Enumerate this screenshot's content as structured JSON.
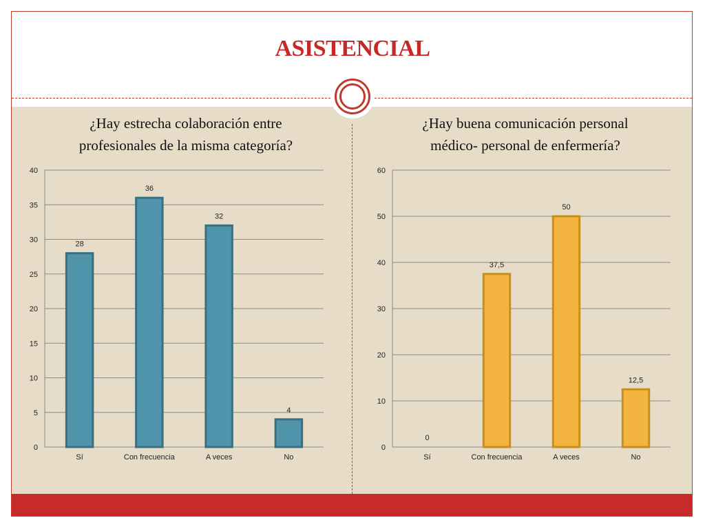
{
  "page": {
    "title": "ASISTENCIAL"
  },
  "colors": {
    "accent": "#c62828",
    "panel_background": "#e6dcc8",
    "series_left": "#4f94aa",
    "series_right": "#f3b53f"
  },
  "chart_data": [
    {
      "type": "bar",
      "title_lines": [
        "¿Hay estrecha colaboración entre",
        "profesionales de la misma categoría?"
      ],
      "categories": [
        "Sí",
        "Con frecuencia",
        "A veces",
        "No"
      ],
      "values": [
        28,
        36,
        32,
        4
      ],
      "labels": [
        "28",
        "36",
        "32",
        "4"
      ],
      "yticks": [
        0,
        5,
        10,
        15,
        20,
        25,
        30,
        35,
        40
      ],
      "ylim": [
        0,
        40
      ],
      "grid": true,
      "color": "#4f94aa",
      "edge": "#3a6f80"
    },
    {
      "type": "bar",
      "title_lines": [
        "¿Hay buena comunicación personal",
        "médico- personal de enfermería?"
      ],
      "categories": [
        "Sí",
        "Con frecuencia",
        "A veces",
        "No"
      ],
      "values": [
        0,
        37.5,
        50,
        12.5
      ],
      "labels": [
        "0",
        "37,5",
        "50",
        "12,5"
      ],
      "yticks": [
        0,
        10,
        20,
        30,
        40,
        50,
        60
      ],
      "ylim": [
        0,
        60
      ],
      "grid": true,
      "color": "#f3b53f",
      "edge": "#c98f1c"
    }
  ]
}
